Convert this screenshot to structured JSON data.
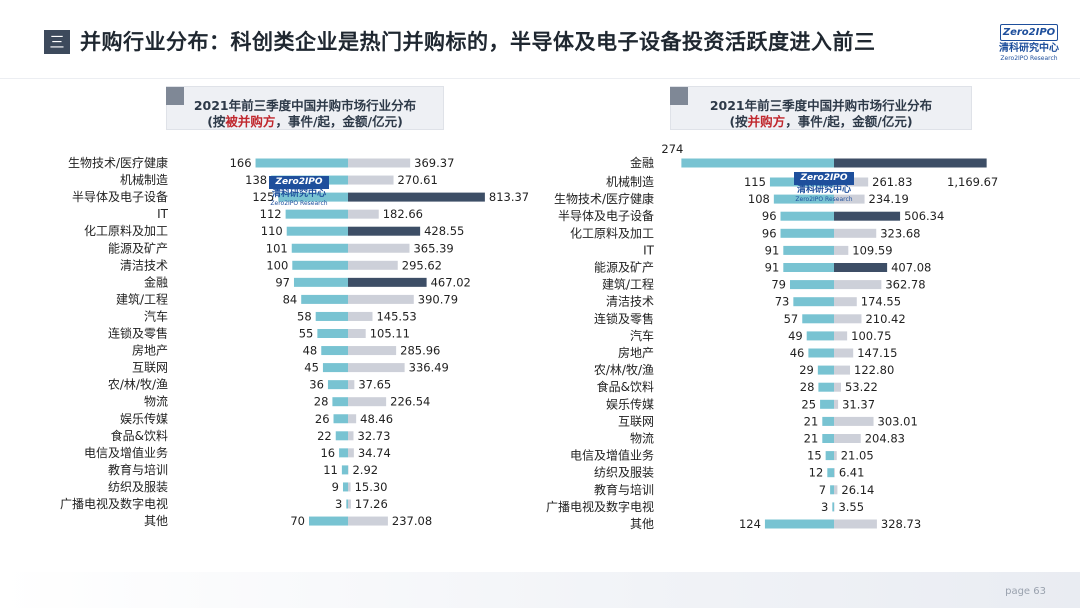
{
  "header": {
    "icon": "menu-icon",
    "icon_glyph": "三",
    "title": "并购行业分布：科创类企业是热门并购标的，半导体及电子设备投资活跃度进入前三",
    "logo_top": "Zero2IPO",
    "logo_cn": "清科研究中心",
    "logo_en": "Zero2IPO Research"
  },
  "watermark": {
    "top": "Zero2IPO",
    "cn": "清科研究中心",
    "en": "Zero2IPO Research"
  },
  "colors": {
    "count_bar": "#78c3d2",
    "amount_bar": "#cdd0d9",
    "highlight_bar": "#3d4e66",
    "title_mark": "#3d4a5c",
    "red": "#c0272d"
  },
  "footer": {
    "page_label": "page 63"
  },
  "chart_data": [
    {
      "type": "bar",
      "title_line1": "2021年前三季度中国并购市场行业分布",
      "title_line2_pre": "(按",
      "title_line2_red": "被并购方",
      "title_line2_post": "，事件/起，金额/亿元)",
      "categories": [
        "生物技术/医疗健康",
        "机械制造",
        "半导体及电子设备",
        "IT",
        "化工原料及加工",
        "能源及矿产",
        "清洁技术",
        "金融",
        "建筑/工程",
        "汽车",
        "连锁及零售",
        "房地产",
        "互联网",
        "农/林/牧/渔",
        "物流",
        "娱乐传媒",
        "食品&饮料",
        "电信及增值业务",
        "教育与培训",
        "纺织及服装",
        "广播电视及数字电视",
        "其他"
      ],
      "count_labels": [
        "166",
        "138",
        "125",
        "112",
        "110",
        "101",
        "100",
        "97",
        "84",
        "58",
        "55",
        "48",
        "45",
        "36",
        "28",
        "26",
        "22",
        "16",
        "11",
        "9",
        "3",
        "70"
      ],
      "amount_labels": [
        "369.37",
        "270.61",
        "813.37",
        "182.66",
        "428.55",
        "365.39",
        "295.62",
        "467.02",
        "390.79",
        "145.53",
        "105.11",
        "285.96",
        "336.49",
        "37.65",
        "226.54",
        "48.46",
        "32.73",
        "34.74",
        "2.92",
        "15.30",
        "17.26",
        "237.08"
      ],
      "series": [
        {
          "name": "事件/起",
          "values": [
            166,
            138,
            125,
            112,
            110,
            101,
            100,
            97,
            84,
            58,
            55,
            48,
            45,
            36,
            28,
            26,
            22,
            16,
            11,
            9,
            3,
            70
          ]
        },
        {
          "name": "金额/亿元",
          "values": [
            369.37,
            270.61,
            813.37,
            182.66,
            428.55,
            365.39,
            295.62,
            467.02,
            390.79,
            145.53,
            105.11,
            285.96,
            336.49,
            37.65,
            226.54,
            48.46,
            32.73,
            34.74,
            2.92,
            15.3,
            17.26,
            237.08
          ]
        }
      ],
      "highlight": [
        2,
        4,
        7
      ]
    },
    {
      "type": "bar",
      "title_line1": "2021年前三季度中国并购市场行业分布",
      "title_line2_pre": "(按",
      "title_line2_red": "并购方",
      "title_line2_post": "，事件/起，金额/亿元)",
      "categories": [
        "金融",
        "机械制造",
        "生物技术/医疗健康",
        "半导体及电子设备",
        "化工原料及加工",
        "IT",
        "能源及矿产",
        "建筑/工程",
        "清洁技术",
        "连锁及零售",
        "汽车",
        "房地产",
        "农/林/牧/渔",
        "食品&饮料",
        "娱乐传媒",
        "互联网",
        "物流",
        "电信及增值业务",
        "纺织及服装",
        "教育与培训",
        "广播电视及数字电视",
        "其他"
      ],
      "count_labels": [
        "274",
        "115",
        "108",
        "96",
        "96",
        "91",
        "91",
        "79",
        "73",
        "57",
        "49",
        "46",
        "29",
        "28",
        "25",
        "21",
        "21",
        "15",
        "12",
        "7",
        "3",
        "124"
      ],
      "amount_labels": [
        "1,169.67",
        "261.83",
        "234.19",
        "506.34",
        "323.68",
        "109.59",
        "407.08",
        "362.78",
        "174.55",
        "210.42",
        "100.75",
        "147.15",
        "122.80",
        "53.22",
        "31.37",
        "303.01",
        "204.83",
        "21.05",
        "6.41",
        "26.14",
        "3.55",
        "328.73"
      ],
      "series": [
        {
          "name": "事件/起",
          "values": [
            274,
            115,
            108,
            96,
            96,
            91,
            91,
            79,
            73,
            57,
            49,
            46,
            29,
            28,
            25,
            21,
            21,
            15,
            12,
            7,
            3,
            124
          ]
        },
        {
          "name": "金额/亿元",
          "values": [
            1169.67,
            261.83,
            234.19,
            506.34,
            323.68,
            109.59,
            407.08,
            362.78,
            174.55,
            210.42,
            100.75,
            147.15,
            122.8,
            53.22,
            31.37,
            303.01,
            204.83,
            21.05,
            6.41,
            26.14,
            3.55,
            328.73
          ]
        }
      ],
      "highlight": [
        0,
        3,
        6
      ]
    }
  ]
}
